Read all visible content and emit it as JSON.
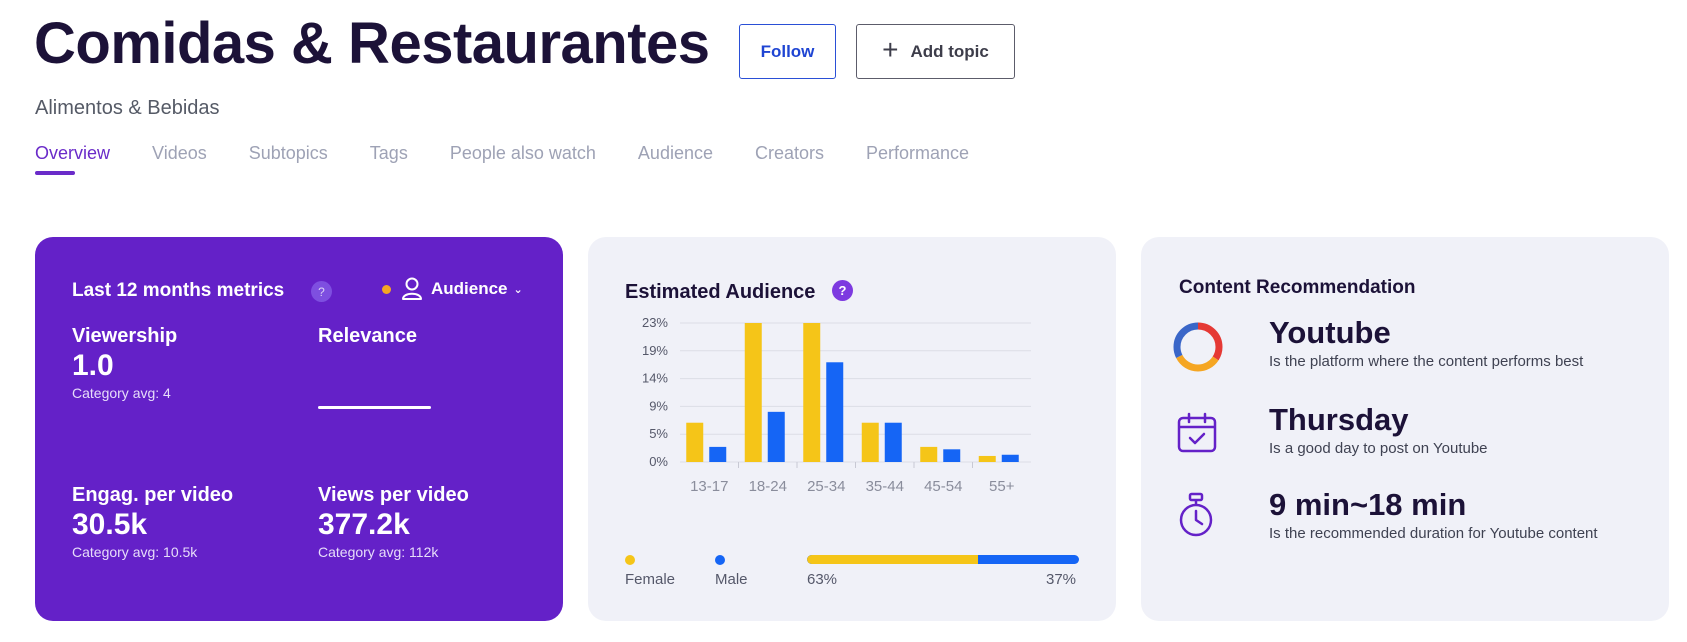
{
  "header": {
    "title": "Comidas & Restaurantes",
    "subtitle": "Alimentos & Bebidas",
    "follow_label": "Follow",
    "add_topic_label": "Add topic"
  },
  "tabs": [
    {
      "label": "Overview",
      "active": true
    },
    {
      "label": "Videos"
    },
    {
      "label": "Subtopics"
    },
    {
      "label": "Tags"
    },
    {
      "label": "People also watch"
    },
    {
      "label": "Audience"
    },
    {
      "label": "Creators"
    },
    {
      "label": "Performance"
    }
  ],
  "metrics": {
    "heading": "Last 12 months metrics",
    "help_icon": "?",
    "audience_selector": "Audience",
    "viewership": {
      "label": "Viewership",
      "value": "1.0",
      "avg": "Category avg: 4"
    },
    "relevance": {
      "label": "Relevance"
    },
    "engagement": {
      "label": "Engag. per video",
      "value": "30.5k",
      "avg": "Category avg: 10.5k"
    },
    "views": {
      "label": "Views per video",
      "value": "377.2k",
      "avg": "Category avg: 112k"
    },
    "accent_color": "#6421c8"
  },
  "audience": {
    "heading": "Estimated Audience",
    "help_icon": "?",
    "female_label": "Female",
    "male_label": "Male",
    "female_pct": "63%",
    "male_pct": "37%",
    "female_share": 0.63,
    "female_color": "#f5c518",
    "male_color": "#1565f5"
  },
  "chart_data": {
    "type": "bar",
    "categories": [
      "13-17",
      "18-24",
      "25-34",
      "35-44",
      "45-54",
      "55+"
    ],
    "series": [
      {
        "name": "Female",
        "values": [
          6.5,
          23,
          23,
          6.5,
          2.5,
          1
        ]
      },
      {
        "name": "Male",
        "values": [
          2.5,
          8.3,
          16.5,
          6.5,
          2.1,
          1.2
        ]
      }
    ],
    "y_ticks": [
      "0%",
      "5%",
      "9%",
      "14%",
      "19%",
      "23%"
    ],
    "ylim": [
      0,
      23
    ],
    "grid": true
  },
  "recommendation": {
    "heading": "Content Recommendation",
    "items": [
      {
        "title": "Youtube",
        "desc": "Is the platform where the content performs best",
        "icon": "donut-icon"
      },
      {
        "title": "Thursday",
        "desc": "Is a good day to post on Youtube",
        "icon": "calendar-icon"
      },
      {
        "title": "9 min~18 min",
        "desc": "Is the recommended duration for Youtube content",
        "icon": "stopwatch-icon"
      }
    ]
  }
}
